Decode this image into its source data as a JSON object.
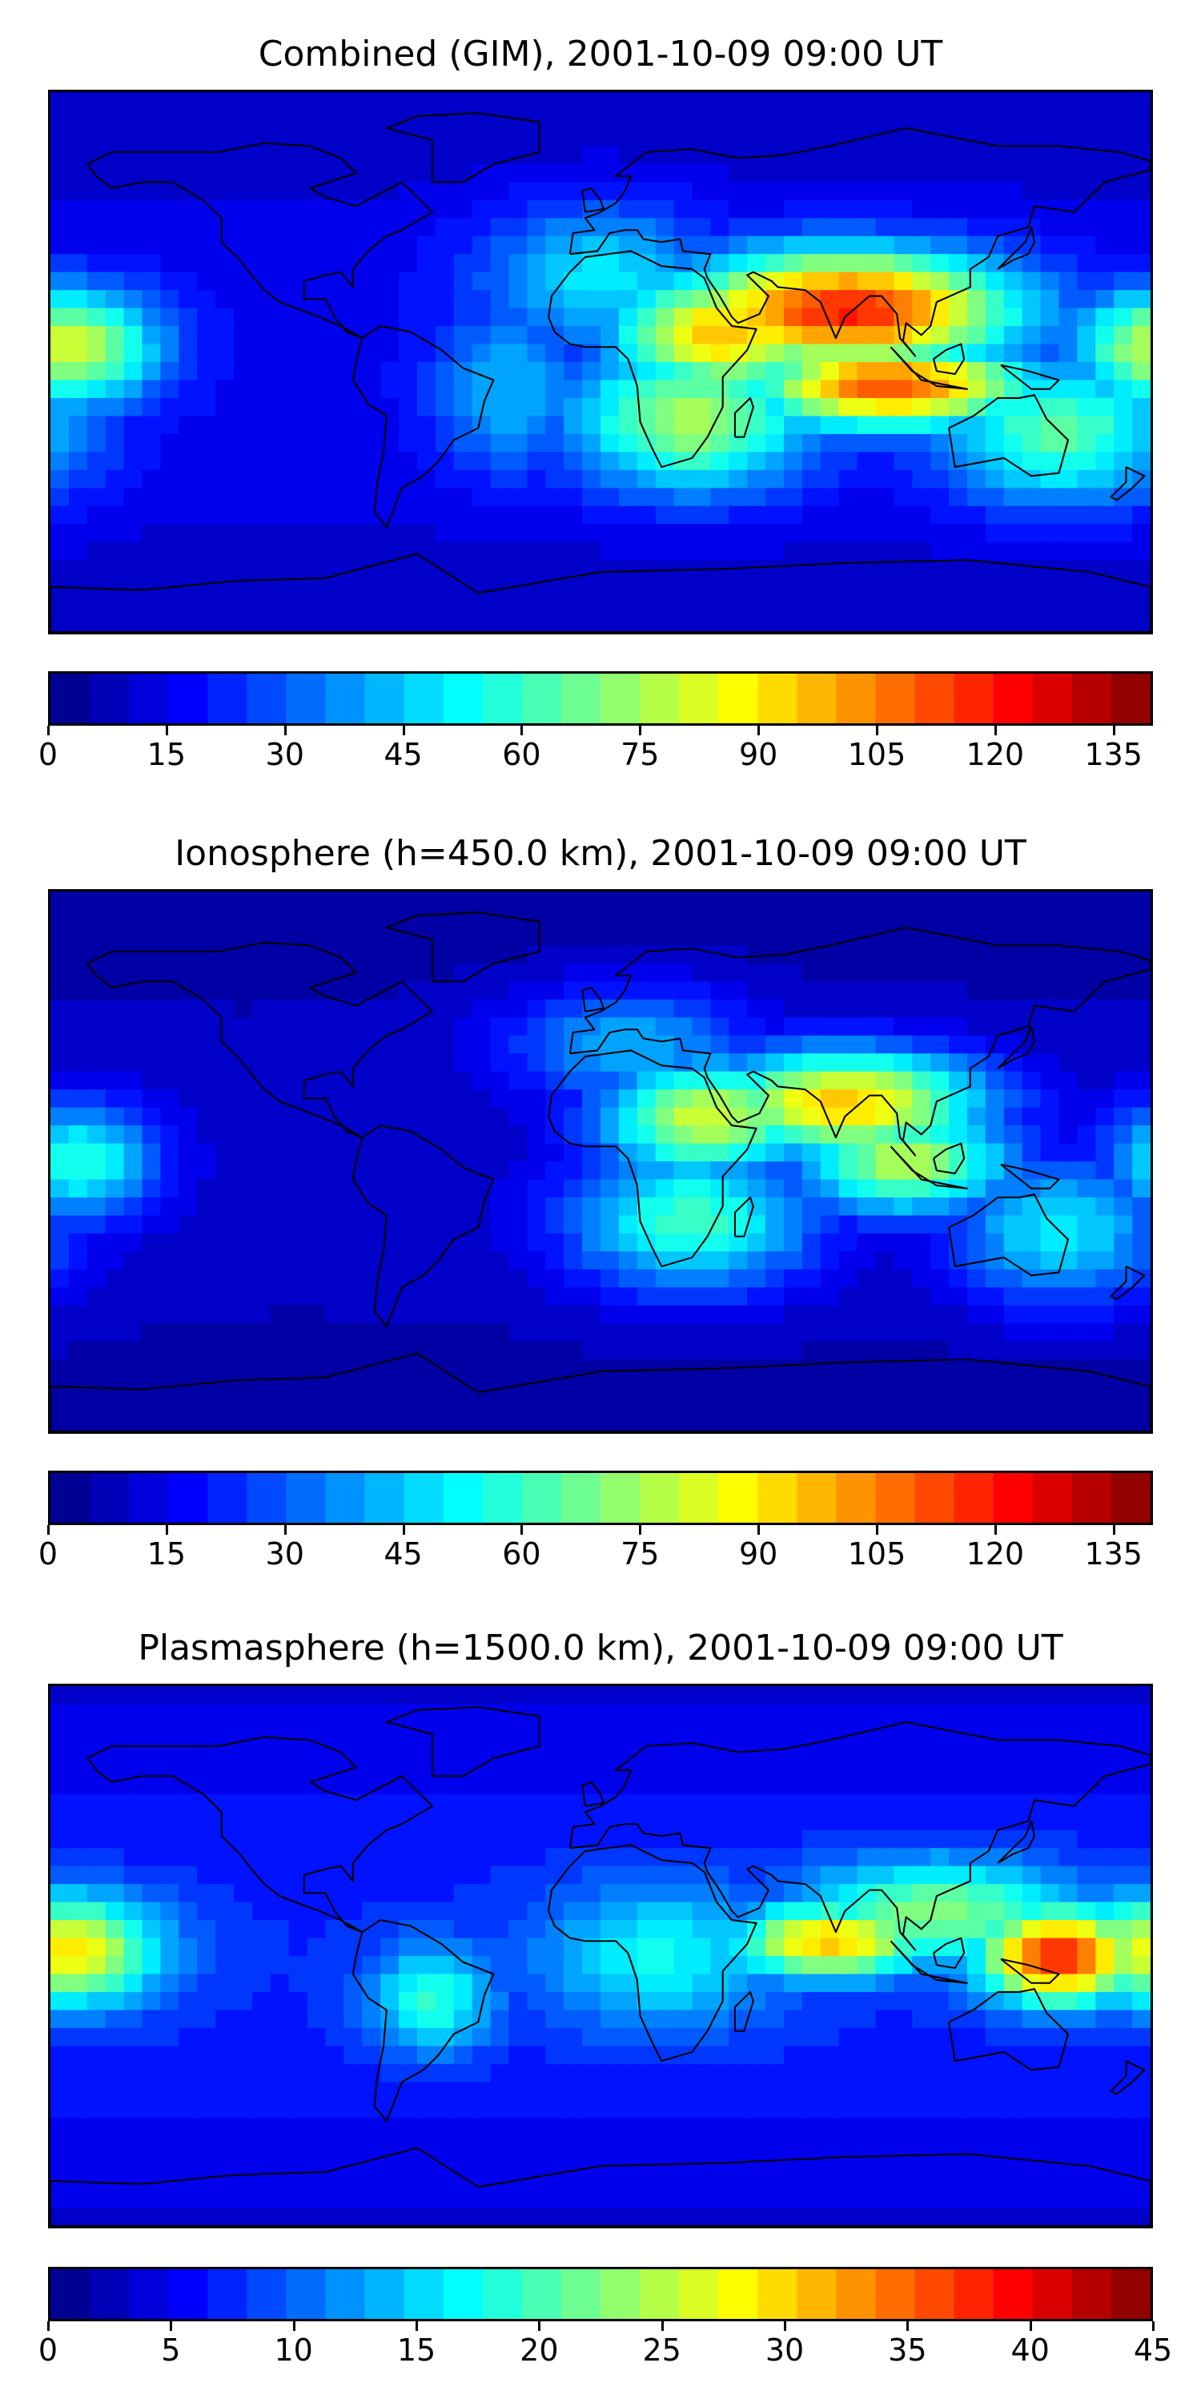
{
  "panels": [
    {
      "title": "Combined (GIM), 2001-10-09 09:00 UT",
      "colorbar": {
        "min": 0,
        "max": 140,
        "ticks": [
          "0",
          "15",
          "30",
          "45",
          "60",
          "75",
          "90",
          "105",
          "120",
          "135"
        ],
        "tick_values": [
          0,
          15,
          30,
          45,
          60,
          75,
          90,
          105,
          120,
          135
        ]
      },
      "field_spots": [
        {
          "lon": 80,
          "lat": 18,
          "value": 125,
          "rlon": 55,
          "rlat": 20
        },
        {
          "lon": 95,
          "lat": -8,
          "value": 115,
          "rlon": 45,
          "rlat": 14
        },
        {
          "lon": 40,
          "lat": 10,
          "value": 100,
          "rlon": 35,
          "rlat": 20
        },
        {
          "lon": 30,
          "lat": -20,
          "value": 80,
          "rlon": 40,
          "rlat": 25
        },
        {
          "lon": -175,
          "lat": 5,
          "value": 85,
          "rlon": 30,
          "rlat": 20
        },
        {
          "lon": 150,
          "lat": -25,
          "value": 70,
          "rlon": 40,
          "rlat": 25
        },
        {
          "lon": 0,
          "lat": 30,
          "value": 55,
          "rlon": 40,
          "rlat": 25
        },
        {
          "lon": -30,
          "lat": -10,
          "value": 45,
          "rlon": 25,
          "rlat": 30
        }
      ],
      "field_base": 18
    },
    {
      "title": "Ionosphere  (h=450.0 km), 2001-10-09 09:00 UT",
      "colorbar": {
        "min": 0,
        "max": 140,
        "ticks": [
          "0",
          "15",
          "30",
          "45",
          "60",
          "75",
          "90",
          "105",
          "120",
          "135"
        ],
        "tick_values": [
          0,
          15,
          30,
          45,
          60,
          75,
          90,
          105,
          120,
          135
        ]
      },
      "field_spots": [
        {
          "lon": 80,
          "lat": 20,
          "value": 100,
          "rlon": 45,
          "rlat": 18
        },
        {
          "lon": 35,
          "lat": 15,
          "value": 85,
          "rlon": 35,
          "rlat": 20
        },
        {
          "lon": 100,
          "lat": 0,
          "value": 80,
          "rlon": 35,
          "rlat": 18
        },
        {
          "lon": 30,
          "lat": -20,
          "value": 65,
          "rlon": 40,
          "rlat": 25
        },
        {
          "lon": 150,
          "lat": -25,
          "value": 55,
          "rlon": 35,
          "rlat": 25
        },
        {
          "lon": -170,
          "lat": 0,
          "value": 60,
          "rlon": 25,
          "rlat": 20
        },
        {
          "lon": 10,
          "lat": 40,
          "value": 50,
          "rlon": 40,
          "rlat": 20
        }
      ],
      "field_base": 12
    },
    {
      "title": "Plasmasphere (h=1500.0 km), 2001-10-09 09:00 UT",
      "colorbar": {
        "min": 0,
        "max": 45,
        "ticks": [
          "0",
          "5",
          "10",
          "15",
          "20",
          "25",
          "30",
          "35",
          "40",
          "45"
        ],
        "tick_values": [
          0,
          5,
          10,
          15,
          20,
          25,
          30,
          35,
          40,
          45
        ]
      },
      "field_spots": [
        {
          "lon": 150,
          "lat": 0,
          "value": 40,
          "rlon": 25,
          "rlat": 15
        },
        {
          "lon": 75,
          "lat": 5,
          "value": 32,
          "rlon": 30,
          "rlat": 12
        },
        {
          "lon": -175,
          "lat": 2,
          "value": 30,
          "rlon": 30,
          "rlat": 18
        },
        {
          "lon": -55,
          "lat": -15,
          "value": 20,
          "rlon": 20,
          "rlat": 18
        },
        {
          "lon": 110,
          "lat": 15,
          "value": 24,
          "rlon": 45,
          "rlat": 18
        },
        {
          "lon": 20,
          "lat": 0,
          "value": 18,
          "rlon": 40,
          "rlat": 25
        }
      ],
      "field_base": 8
    }
  ]
}
